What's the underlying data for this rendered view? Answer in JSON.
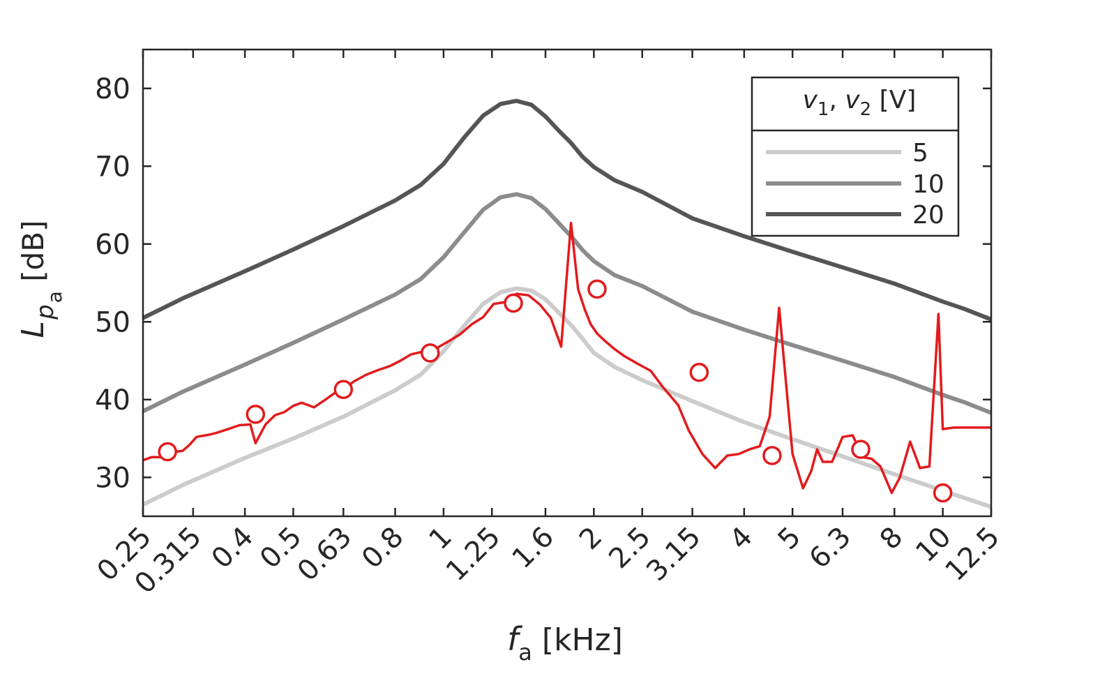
{
  "chart_data": {
    "type": "line",
    "x_scale": "log",
    "xlim": [
      0.25,
      12.5
    ],
    "ylim": [
      25,
      85
    ],
    "xlabel": {
      "main": "f",
      "sub": "a",
      "unit": "[kHz]"
    },
    "ylabel": {
      "main": "L",
      "sub1": "p",
      "sub2": "a",
      "unit": "[dB]"
    },
    "x_ticks": [
      {
        "value": 0.25,
        "label": "0.25"
      },
      {
        "value": 0.315,
        "label": "0.315"
      },
      {
        "value": 0.4,
        "label": "0.4"
      },
      {
        "value": 0.5,
        "label": "0.5"
      },
      {
        "value": 0.63,
        "label": "0.63"
      },
      {
        "value": 0.8,
        "label": "0.8"
      },
      {
        "value": 1,
        "label": "1"
      },
      {
        "value": 1.25,
        "label": "1.25"
      },
      {
        "value": 1.6,
        "label": "1.6"
      },
      {
        "value": 2,
        "label": "2"
      },
      {
        "value": 2.5,
        "label": "2.5"
      },
      {
        "value": 3.15,
        "label": "3.15"
      },
      {
        "value": 4,
        "label": "4"
      },
      {
        "value": 5,
        "label": "5"
      },
      {
        "value": 6.3,
        "label": "6.3"
      },
      {
        "value": 8,
        "label": "8"
      },
      {
        "value": 10,
        "label": "10"
      },
      {
        "value": 12.5,
        "label": "12.5"
      }
    ],
    "y_ticks": [
      {
        "value": 30,
        "label": "30"
      },
      {
        "value": 40,
        "label": "40"
      },
      {
        "value": 50,
        "label": "50"
      },
      {
        "value": 60,
        "label": "60"
      },
      {
        "value": 70,
        "label": "70"
      },
      {
        "value": 80,
        "label": "80"
      }
    ],
    "legend": {
      "title": {
        "a": "v",
        "a_sub": "1",
        "sep": ", ",
        "b": "v",
        "b_sub": "2",
        "unit": " [V]"
      },
      "placement": "top-right"
    },
    "series": [
      {
        "name": "5",
        "color": "#cccccc",
        "x": [
          0.25,
          0.3,
          0.4,
          0.5,
          0.63,
          0.8,
          0.9,
          1.0,
          1.1,
          1.2,
          1.3,
          1.4,
          1.5,
          1.6,
          1.7,
          1.8,
          1.9,
          2.0,
          2.2,
          2.5,
          3.15,
          4.0,
          5.0,
          6.3,
          8.0,
          10.0,
          11.0,
          12.5
        ],
        "values": [
          26.5,
          29.0,
          32.5,
          35.0,
          37.8,
          41.2,
          43.2,
          46.2,
          49.5,
          52.3,
          53.8,
          54.3,
          54.0,
          52.9,
          51.2,
          49.6,
          47.8,
          46.0,
          44.2,
          42.5,
          39.8,
          37.1,
          34.9,
          32.7,
          30.4,
          28.3,
          27.4,
          26.2
        ]
      },
      {
        "name": "10",
        "color": "#8c8c8c",
        "x": [
          0.25,
          0.3,
          0.4,
          0.5,
          0.63,
          0.8,
          0.9,
          1.0,
          1.1,
          1.2,
          1.3,
          1.4,
          1.5,
          1.6,
          1.7,
          1.8,
          1.9,
          2.0,
          2.2,
          2.5,
          3.15,
          4.0,
          5.0,
          6.3,
          8.0,
          10.0,
          11.0,
          12.5
        ],
        "values": [
          38.5,
          41.0,
          44.5,
          47.3,
          50.3,
          53.5,
          55.5,
          58.3,
          61.5,
          64.4,
          66.0,
          66.4,
          65.9,
          64.5,
          62.7,
          61.0,
          59.2,
          57.8,
          56.0,
          54.6,
          51.3,
          49.0,
          47.0,
          45.0,
          42.9,
          40.6,
          39.7,
          38.3
        ]
      },
      {
        "name": "20",
        "color": "#555555",
        "x": [
          0.25,
          0.3,
          0.4,
          0.5,
          0.63,
          0.8,
          0.9,
          1.0,
          1.1,
          1.2,
          1.3,
          1.4,
          1.5,
          1.6,
          1.7,
          1.8,
          1.9,
          2.0,
          2.2,
          2.5,
          3.15,
          4.0,
          5.0,
          6.3,
          8.0,
          10.0,
          11.0,
          12.5
        ],
        "values": [
          50.5,
          53.0,
          56.5,
          59.3,
          62.3,
          65.6,
          67.6,
          70.3,
          73.7,
          76.5,
          78.0,
          78.4,
          77.9,
          76.4,
          74.6,
          73.0,
          71.2,
          69.9,
          68.2,
          66.7,
          63.3,
          61.0,
          59.0,
          57.0,
          54.9,
          52.6,
          51.7,
          50.3
        ]
      },
      {
        "name": "",
        "color": "#e31a1c",
        "x": [
          0.25,
          0.26,
          0.27,
          0.28,
          0.29,
          0.3,
          0.31,
          0.32,
          0.34,
          0.35,
          0.37,
          0.39,
          0.41,
          0.42,
          0.44,
          0.46,
          0.48,
          0.5,
          0.52,
          0.55,
          0.58,
          0.61,
          0.63,
          0.66,
          0.7,
          0.74,
          0.78,
          0.82,
          0.86,
          0.9,
          0.94,
          0.98,
          1.03,
          1.08,
          1.14,
          1.2,
          1.26,
          1.32,
          1.4,
          1.48,
          1.56,
          1.64,
          1.72,
          1.8,
          1.86,
          1.92,
          1.97,
          2.03,
          2.1,
          2.2,
          2.3,
          2.45,
          2.6,
          2.75,
          2.95,
          3.1,
          3.3,
          3.5,
          3.7,
          3.9,
          4.1,
          4.3,
          4.5,
          4.7,
          5.0,
          5.25,
          5.45,
          5.6,
          5.75,
          6.0,
          6.3,
          6.6,
          6.9,
          7.2,
          7.5,
          7.9,
          8.2,
          8.6,
          9.0,
          9.4,
          9.8,
          10.0,
          10.5,
          10.9,
          11.3,
          11.7,
          12.1,
          12.5
        ],
        "values": [
          32.2,
          32.6,
          32.6,
          32.9,
          33.3,
          33.4,
          34.2,
          35.2,
          35.5,
          35.7,
          36.2,
          36.7,
          36.8,
          34.4,
          36.8,
          38.0,
          38.4,
          39.2,
          39.6,
          39.0,
          40.0,
          41.0,
          41.3,
          42.3,
          43.2,
          43.8,
          44.3,
          45.0,
          45.8,
          46.1,
          46.0,
          46.8,
          47.6,
          48.4,
          49.7,
          50.6,
          52.3,
          52.5,
          53.6,
          53.4,
          52.2,
          50.5,
          46.8,
          62.7,
          54.2,
          51.5,
          49.7,
          48.5,
          47.6,
          46.5,
          45.6,
          44.6,
          43.7,
          41.6,
          39.3,
          36.0,
          33.0,
          31.2,
          32.8,
          33.0,
          33.6,
          34.0,
          37.8,
          51.8,
          33.0,
          28.6,
          30.8,
          33.6,
          32.0,
          32.0,
          35.2,
          35.4,
          32.6,
          32.4,
          31.4,
          28.0,
          30.0,
          34.6,
          31.2,
          31.4,
          51.0,
          36.2,
          36.4,
          36.4,
          36.4,
          36.4,
          36.4,
          36.4
        ],
        "markers": [
          {
            "x": 0.28,
            "y": 33.3
          },
          {
            "x": 0.42,
            "y": 38.1
          },
          {
            "x": 0.63,
            "y": 41.3
          },
          {
            "x": 0.94,
            "y": 46.0
          },
          {
            "x": 1.38,
            "y": 52.4
          },
          {
            "x": 2.03,
            "y": 54.2
          },
          {
            "x": 3.25,
            "y": 43.5
          },
          {
            "x": 4.55,
            "y": 32.8
          },
          {
            "x": 6.85,
            "y": 33.6
          },
          {
            "x": 10.0,
            "y": 28.0
          }
        ]
      }
    ],
    "grid": false
  }
}
